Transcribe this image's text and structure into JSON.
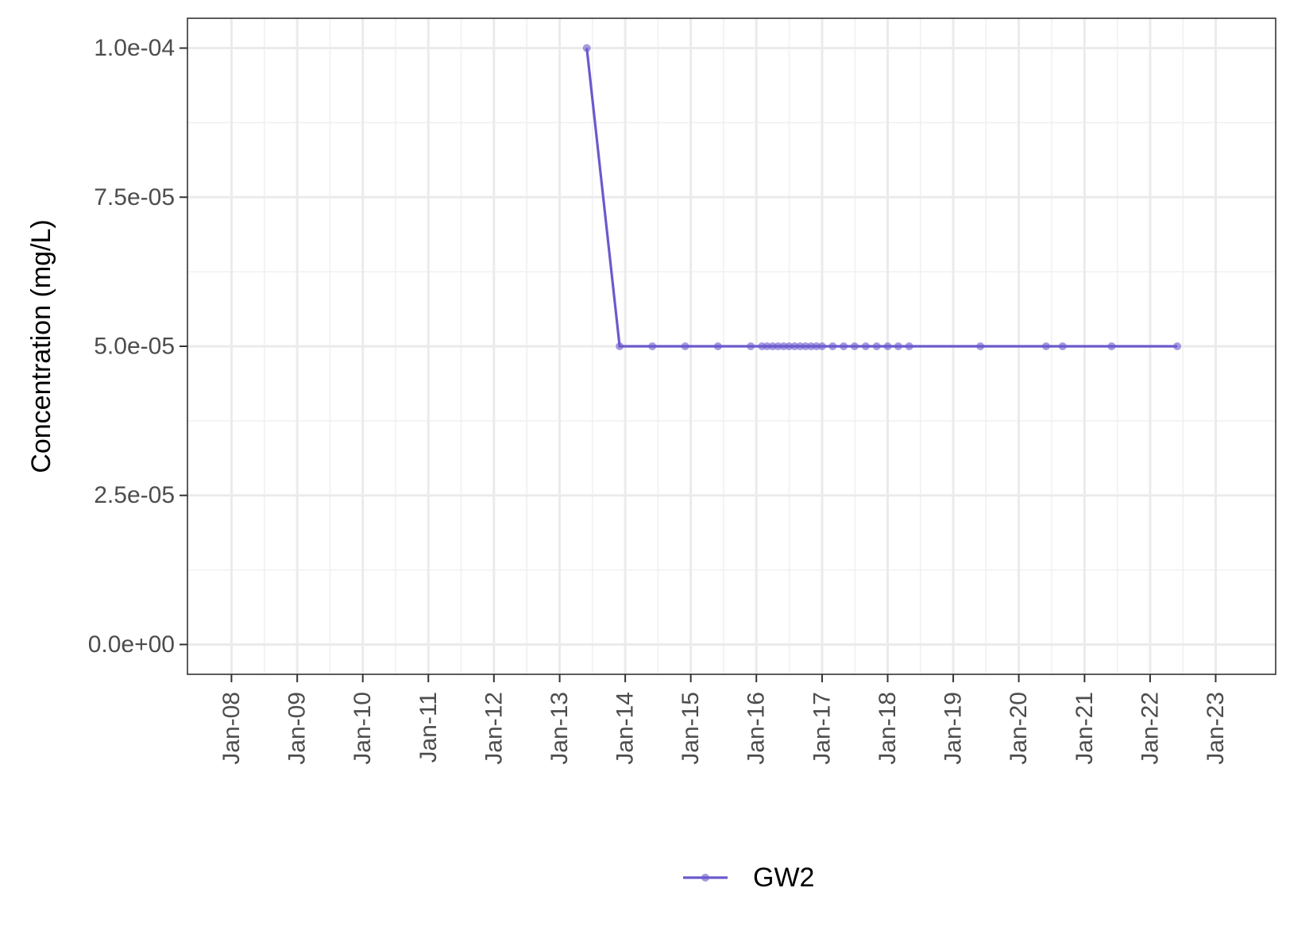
{
  "chart_data": {
    "type": "line",
    "title": "",
    "xlabel": "",
    "ylabel": "Concentration (mg/L)",
    "x_ticks": [
      "Jan-08",
      "Jan-09",
      "Jan-10",
      "Jan-11",
      "Jan-12",
      "Jan-13",
      "Jan-14",
      "Jan-15",
      "Jan-16",
      "Jan-17",
      "Jan-18",
      "Jan-19",
      "Jan-20",
      "Jan-21",
      "Jan-22",
      "Jan-23"
    ],
    "y_ticks": [
      {
        "value": 0,
        "label": "0.0e+00"
      },
      {
        "value": 2.5e-05,
        "label": "2.5e-05"
      },
      {
        "value": 5e-05,
        "label": "5.0e-05"
      },
      {
        "value": 7.5e-05,
        "label": "7.5e-05"
      },
      {
        "value": 0.0001,
        "label": "1.0e-04"
      }
    ],
    "xlim": [
      "2007-05-01",
      "2023-12-01"
    ],
    "ylim": [
      -5e-06,
      0.000105
    ],
    "grid": true,
    "legend_position": "bottom",
    "series": [
      {
        "name": "GW2",
        "color": "#6a5acd",
        "points": [
          {
            "x": "2013-06-01",
            "y": 0.0001
          },
          {
            "x": "2013-12-01",
            "y": 5e-05
          },
          {
            "x": "2014-06-01",
            "y": 5e-05
          },
          {
            "x": "2014-12-01",
            "y": 5e-05
          },
          {
            "x": "2015-06-01",
            "y": 5e-05
          },
          {
            "x": "2015-12-01",
            "y": 5e-05
          },
          {
            "x": "2016-02-01",
            "y": 5e-05
          },
          {
            "x": "2016-03-01",
            "y": 5e-05
          },
          {
            "x": "2016-04-01",
            "y": 5e-05
          },
          {
            "x": "2016-05-01",
            "y": 5e-05
          },
          {
            "x": "2016-06-01",
            "y": 5e-05
          },
          {
            "x": "2016-07-01",
            "y": 5e-05
          },
          {
            "x": "2016-08-01",
            "y": 5e-05
          },
          {
            "x": "2016-09-01",
            "y": 5e-05
          },
          {
            "x": "2016-10-01",
            "y": 5e-05
          },
          {
            "x": "2016-11-01",
            "y": 5e-05
          },
          {
            "x": "2016-12-01",
            "y": 5e-05
          },
          {
            "x": "2017-01-01",
            "y": 5e-05
          },
          {
            "x": "2017-03-01",
            "y": 5e-05
          },
          {
            "x": "2017-05-01",
            "y": 5e-05
          },
          {
            "x": "2017-07-01",
            "y": 5e-05
          },
          {
            "x": "2017-09-01",
            "y": 5e-05
          },
          {
            "x": "2017-11-01",
            "y": 5e-05
          },
          {
            "x": "2018-01-01",
            "y": 5e-05
          },
          {
            "x": "2018-03-01",
            "y": 5e-05
          },
          {
            "x": "2018-05-01",
            "y": 5e-05
          },
          {
            "x": "2019-06-01",
            "y": 5e-05
          },
          {
            "x": "2020-06-01",
            "y": 5e-05
          },
          {
            "x": "2020-09-01",
            "y": 5e-05
          },
          {
            "x": "2021-06-01",
            "y": 5e-05
          },
          {
            "x": "2022-06-01",
            "y": 5e-05
          }
        ]
      }
    ]
  }
}
